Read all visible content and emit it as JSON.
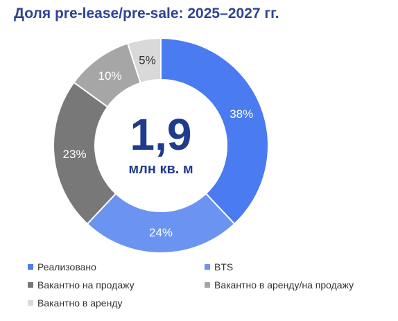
{
  "title": "Доля pre-lease/pre-sale: 2025–2027 гг.",
  "center": {
    "value": "1,9",
    "unit": "млн кв. м"
  },
  "colors": {
    "title": "#2E4494",
    "center": "#1F3B8C"
  },
  "chart_data": {
    "type": "pie",
    "title": "Доля pre-lease/pre-sale: 2025–2027 гг.",
    "series": [
      {
        "name": "Доля",
        "categories": [
          "Реализовано",
          "BTS",
          "Вакантно на продажу",
          "Вакантно в аренду/на продажу",
          "Вакантно в аренду"
        ],
        "values": [
          38,
          24,
          23,
          10,
          5
        ],
        "labels": [
          "38%",
          "24%",
          "23%",
          "10%",
          "5%"
        ],
        "colors": [
          "#4A7BF0",
          "#6B93F2",
          "#787878",
          "#A6A6A6",
          "#D9D9D9"
        ],
        "label_colors": [
          "#ffffff",
          "#ffffff",
          "#ffffff",
          "#ffffff",
          "#333333"
        ]
      }
    ],
    "legend": "bottom"
  }
}
